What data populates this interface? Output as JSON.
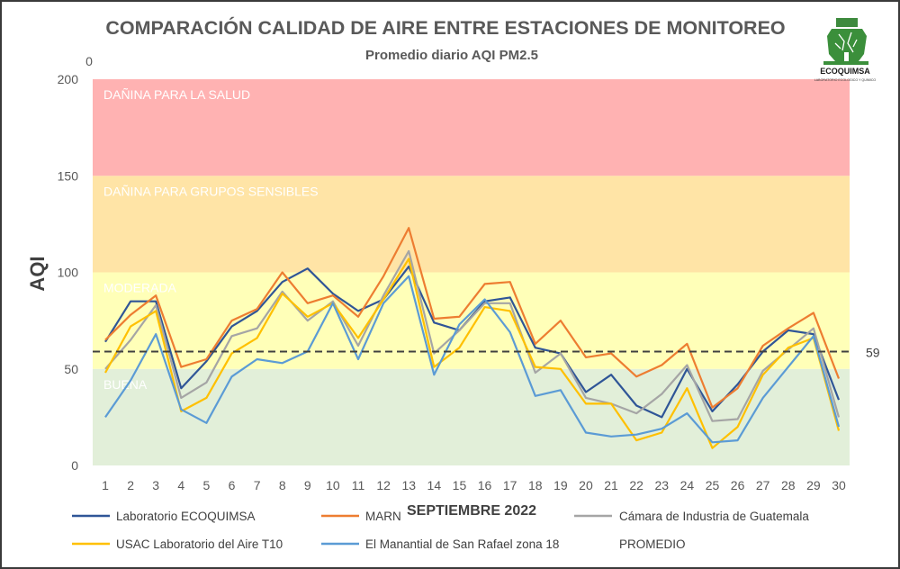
{
  "chart_data": {
    "type": "line",
    "title": "COMPARACIÓN CALIDAD DE AIRE ENTRE ESTACIONES DE MONITOREO",
    "subtitle": "Promedio diario AQI PM2.5",
    "xlabel": "SEPTIEMBRE 2022",
    "ylabel": "AQI",
    "corner_value": "0",
    "ylim": [
      0,
      200
    ],
    "yticks": [
      0,
      50,
      100,
      150,
      200
    ],
    "x": [
      1,
      2,
      3,
      4,
      5,
      6,
      7,
      8,
      9,
      10,
      11,
      12,
      13,
      14,
      15,
      16,
      17,
      18,
      19,
      20,
      21,
      22,
      23,
      24,
      25,
      26,
      27,
      28,
      29,
      30
    ],
    "zones": [
      {
        "label": "BUENA",
        "from": 0,
        "to": 50,
        "color": "#e2efd9"
      },
      {
        "label": "MODERADA",
        "from": 50,
        "to": 100,
        "color": "#ffffb8"
      },
      {
        "label": "DAÑINA PARA  GRUPOS SENSIBLES",
        "from": 100,
        "to": 150,
        "color": "#ffe4a6"
      },
      {
        "label": "DAÑINA PARA LA SALUD",
        "from": 150,
        "to": 200,
        "color": "#ffb2b2"
      }
    ],
    "average": {
      "name": "PROMEDIO",
      "value": 59,
      "label": "59",
      "color": "#404040"
    },
    "series": [
      {
        "name": "Laboratorio ECOQUIMSA",
        "color": "#2f5597",
        "values": [
          64,
          85,
          85,
          40,
          54,
          72,
          80,
          95,
          102,
          89,
          80,
          86,
          103,
          74,
          70,
          85,
          87,
          61,
          58,
          38,
          47,
          31,
          25,
          50,
          28,
          42,
          59,
          70,
          68,
          34
        ]
      },
      {
        "name": "MARN",
        "color": "#ed7d31",
        "values": [
          65,
          78,
          88,
          51,
          55,
          75,
          81,
          100,
          84,
          88,
          77,
          98,
          123,
          76,
          77,
          94,
          95,
          63,
          75,
          56,
          58,
          46,
          52,
          63,
          30,
          40,
          62,
          71,
          79,
          45
        ]
      },
      {
        "name": "Cámara de Industria de Guatemala",
        "color": "#a5a5a5",
        "values": [
          50,
          65,
          83,
          35,
          43,
          67,
          71,
          90,
          75,
          85,
          62,
          88,
          111,
          58,
          70,
          84,
          84,
          48,
          58,
          35,
          32,
          27,
          37,
          52,
          23,
          24,
          49,
          60,
          71,
          25
        ]
      },
      {
        "name": "USAC Laboratorio del Aire T10",
        "color": "#ffc000",
        "values": [
          48,
          72,
          80,
          28,
          35,
          58,
          66,
          89,
          77,
          84,
          66,
          86,
          107,
          51,
          61,
          82,
          80,
          51,
          50,
          32,
          32,
          13,
          17,
          40,
          9,
          20,
          47,
          61,
          66,
          18
        ]
      },
      {
        "name": "El Manantial de San Rafael zona 18",
        "color": "#5b9bd5",
        "values": [
          25,
          44,
          68,
          29,
          22,
          46,
          55,
          53,
          59,
          84,
          55,
          84,
          98,
          47,
          73,
          86,
          69,
          36,
          39,
          17,
          15,
          16,
          19,
          27,
          12,
          13,
          35,
          51,
          67,
          20
        ]
      }
    ]
  },
  "logo": {
    "name": "ECOQUIMSA",
    "tagline": "LABORATORIO ECOLOGICO Y QUIMICO"
  }
}
